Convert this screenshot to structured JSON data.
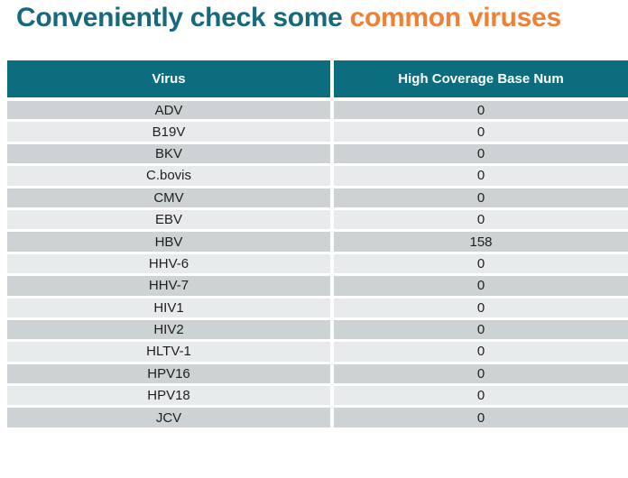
{
  "title": {
    "part1": "Conveniently check some ",
    "part2": "common viruses"
  },
  "colors": {
    "title_teal": "#17697C",
    "title_orange": "#EF8035",
    "header_bg": "#0C6D7E",
    "header_text": "#FFFFFF",
    "row_dark": "#CDD2D4",
    "row_light": "#E8EBEC",
    "cell_text": "#1F1F1F"
  },
  "table": {
    "columns": [
      "Virus",
      "High Coverage Base Num"
    ],
    "rows": [
      {
        "virus": "ADV",
        "value": "0"
      },
      {
        "virus": "B19V",
        "value": "0"
      },
      {
        "virus": "BKV",
        "value": "0"
      },
      {
        "virus": "C.bovis",
        "value": "0"
      },
      {
        "virus": "CMV",
        "value": "0"
      },
      {
        "virus": "EBV",
        "value": "0"
      },
      {
        "virus": "HBV",
        "value": "158"
      },
      {
        "virus": "HHV-6",
        "value": "0"
      },
      {
        "virus": "HHV-7",
        "value": "0"
      },
      {
        "virus": "HIV1",
        "value": "0"
      },
      {
        "virus": "HIV2",
        "value": "0"
      },
      {
        "virus": "HLTV-1",
        "value": "0"
      },
      {
        "virus": "HPV16",
        "value": "0"
      },
      {
        "virus": "HPV18",
        "value": "0"
      },
      {
        "virus": "JCV",
        "value": "0"
      }
    ]
  }
}
